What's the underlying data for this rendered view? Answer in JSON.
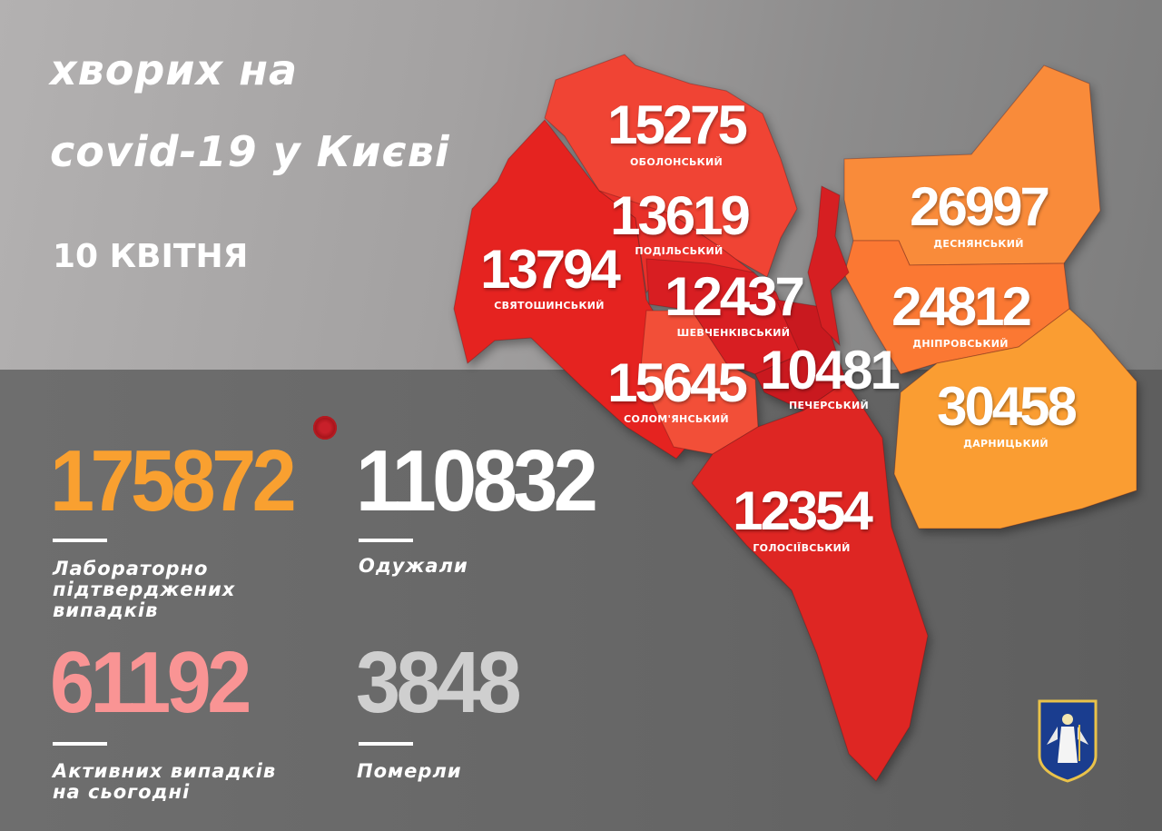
{
  "header": {
    "title_line1": "хворих на",
    "title_line2": "covid-19 у Києві",
    "date": "10 КВІТНЯ"
  },
  "stats": [
    {
      "value": "175872",
      "label_lines": [
        "Лабораторно",
        "підтверджених",
        "випадків"
      ],
      "color": "#f9a030"
    },
    {
      "value": "110832",
      "label_lines": [
        "Одужали"
      ],
      "color": "#ffffff"
    },
    {
      "value": "61192",
      "label_lines": [
        "Активних випадків",
        "на сьогодні"
      ],
      "color": "#f99494"
    },
    {
      "value": "3848",
      "label_lines": [
        "Померли"
      ],
      "color": "#cfcfcf"
    }
  ],
  "districts": [
    {
      "name": "ОБОЛОНСЬКИЙ",
      "value": "15275",
      "color": "#f04434"
    },
    {
      "name": "ПОДІЛЬСЬКИЙ",
      "value": "13619",
      "color": "#e8302a"
    },
    {
      "name": "СВЯТОШИНСЬКИЙ",
      "value": "13794",
      "color": "#e52320"
    },
    {
      "name": "ШЕВЧЕНКІВСЬКИЙ",
      "value": "12437",
      "color": "#d81e22"
    },
    {
      "name": "СОЛОМ'ЯНСЬКИЙ",
      "value": "15645",
      "color": "#f24f38"
    },
    {
      "name": "ПЕЧЕРСЬКИЙ",
      "value": "10481",
      "color": "#c9191f"
    },
    {
      "name": "ГОЛОСІЇВСЬКИЙ",
      "value": "12354",
      "color": "#de2623"
    },
    {
      "name": "ДЕСНЯНСЬКИЙ",
      "value": "26997",
      "color": "#f98b3a"
    },
    {
      "name": "ДНІПРОВСЬКИЙ",
      "value": "24812",
      "color": "#fb7833"
    },
    {
      "name": "ДАРНИЦЬКИЙ",
      "value": "30458",
      "color": "#fa9d32"
    }
  ],
  "icons": {
    "virus": "virus-icon",
    "emblem": "kyiv-coat-of-arms"
  }
}
